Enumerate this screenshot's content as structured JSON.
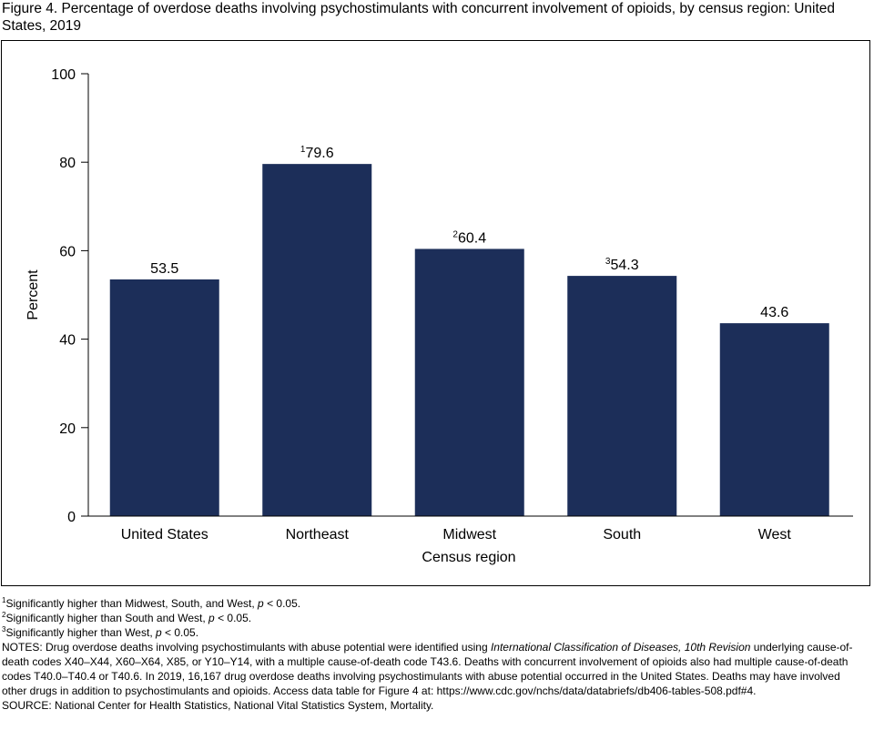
{
  "title": "Figure 4. Percentage of overdose deaths involving psychostimulants with concurrent involvement of opioids, by census region: United States, 2019",
  "colors": {
    "bar": "#1c2e59",
    "axis": "#000000"
  },
  "chart_data": {
    "type": "bar",
    "categories": [
      "United States",
      "Northeast",
      "Midwest",
      "South",
      "West"
    ],
    "values": [
      53.5,
      79.6,
      60.4,
      54.3,
      43.6
    ],
    "value_labels": [
      "53.5",
      "79.6",
      "60.4",
      "54.3",
      "43.6"
    ],
    "label_footnotes": [
      "",
      "1",
      "2",
      "3",
      ""
    ],
    "xlabel": "Census region",
    "ylabel": "Percent",
    "ylim": [
      0,
      100
    ],
    "yticks": [
      0,
      20,
      40,
      60,
      80,
      100
    ],
    "grid": false,
    "legend": "none"
  },
  "footnotes": [
    {
      "mark": "1",
      "text": "Significantly higher than Midwest, South, and West, ",
      "p": "p",
      "tail": " < 0.05."
    },
    {
      "mark": "2",
      "text": "Significantly higher than South and West, ",
      "p": "p",
      "tail": " < 0.05."
    },
    {
      "mark": "3",
      "text": "Significantly higher than West, ",
      "p": "p",
      "tail": " < 0.05."
    }
  ],
  "notes": {
    "part1": "NOTES: Drug overdose deaths involving psychostimulants with abuse potential were identified using ",
    "italic": "International Classification of Diseases, 10th Revision",
    "part2": " underlying cause-of-death codes X40–X44, X60–X64, X85, or Y10–Y14, with a multiple cause-of-death code T43.6. Deaths with concurrent involvement of opioids also had multiple cause-of-death codes T40.0–T40.4 or T40.6. In 2019, 16,167 drug overdose deaths involving psychostimulants with abuse potential occurred in the United States. Deaths may have involved other drugs in addition to psychostimulants and opioids. Access data table for Figure 4 at: https://www.cdc.gov/nchs/data/databriefs/db406-tables-508.pdf#4."
  },
  "source": "SOURCE: National Center for Health Statistics, National Vital Statistics System, Mortality."
}
